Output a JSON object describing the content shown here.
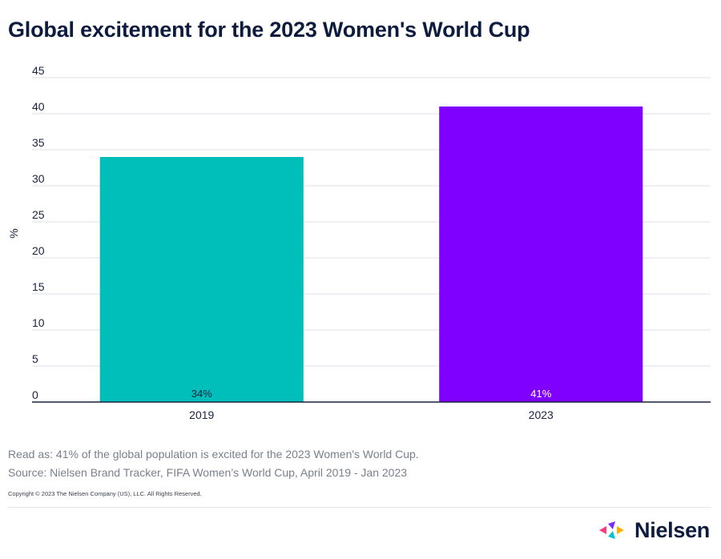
{
  "title": "Global excitement for the 2023 Women's World Cup",
  "chart_data": {
    "type": "bar",
    "categories": [
      "2019",
      "2023"
    ],
    "values": [
      34,
      41
    ],
    "data_labels": [
      "34%",
      "41%"
    ],
    "ylabel": "%",
    "xlabel": "",
    "ylim": [
      0,
      45
    ],
    "yticks": [
      0,
      5,
      10,
      15,
      20,
      25,
      30,
      35,
      40,
      45
    ],
    "grid": true,
    "colors": [
      "#00bfba",
      "#7f00ff"
    ]
  },
  "notes": {
    "read_as": "Read as: 41% of the global population is excited for the 2023 Women's World Cup.",
    "source": "Source: Nielsen Brand Tracker, FIFA Women’s World Cup, April 2019 - Jan 2023"
  },
  "copyright": "Copyright © 2023 The Nielsen Company (US), LLC. All Rights Reserved.",
  "brand": {
    "name": "Nielsen",
    "logo_icon": "nielsen-logo-icon",
    "logo_colors": [
      "#ff3b7a",
      "#7b2cff",
      "#00c2d1",
      "#ffb000"
    ]
  }
}
